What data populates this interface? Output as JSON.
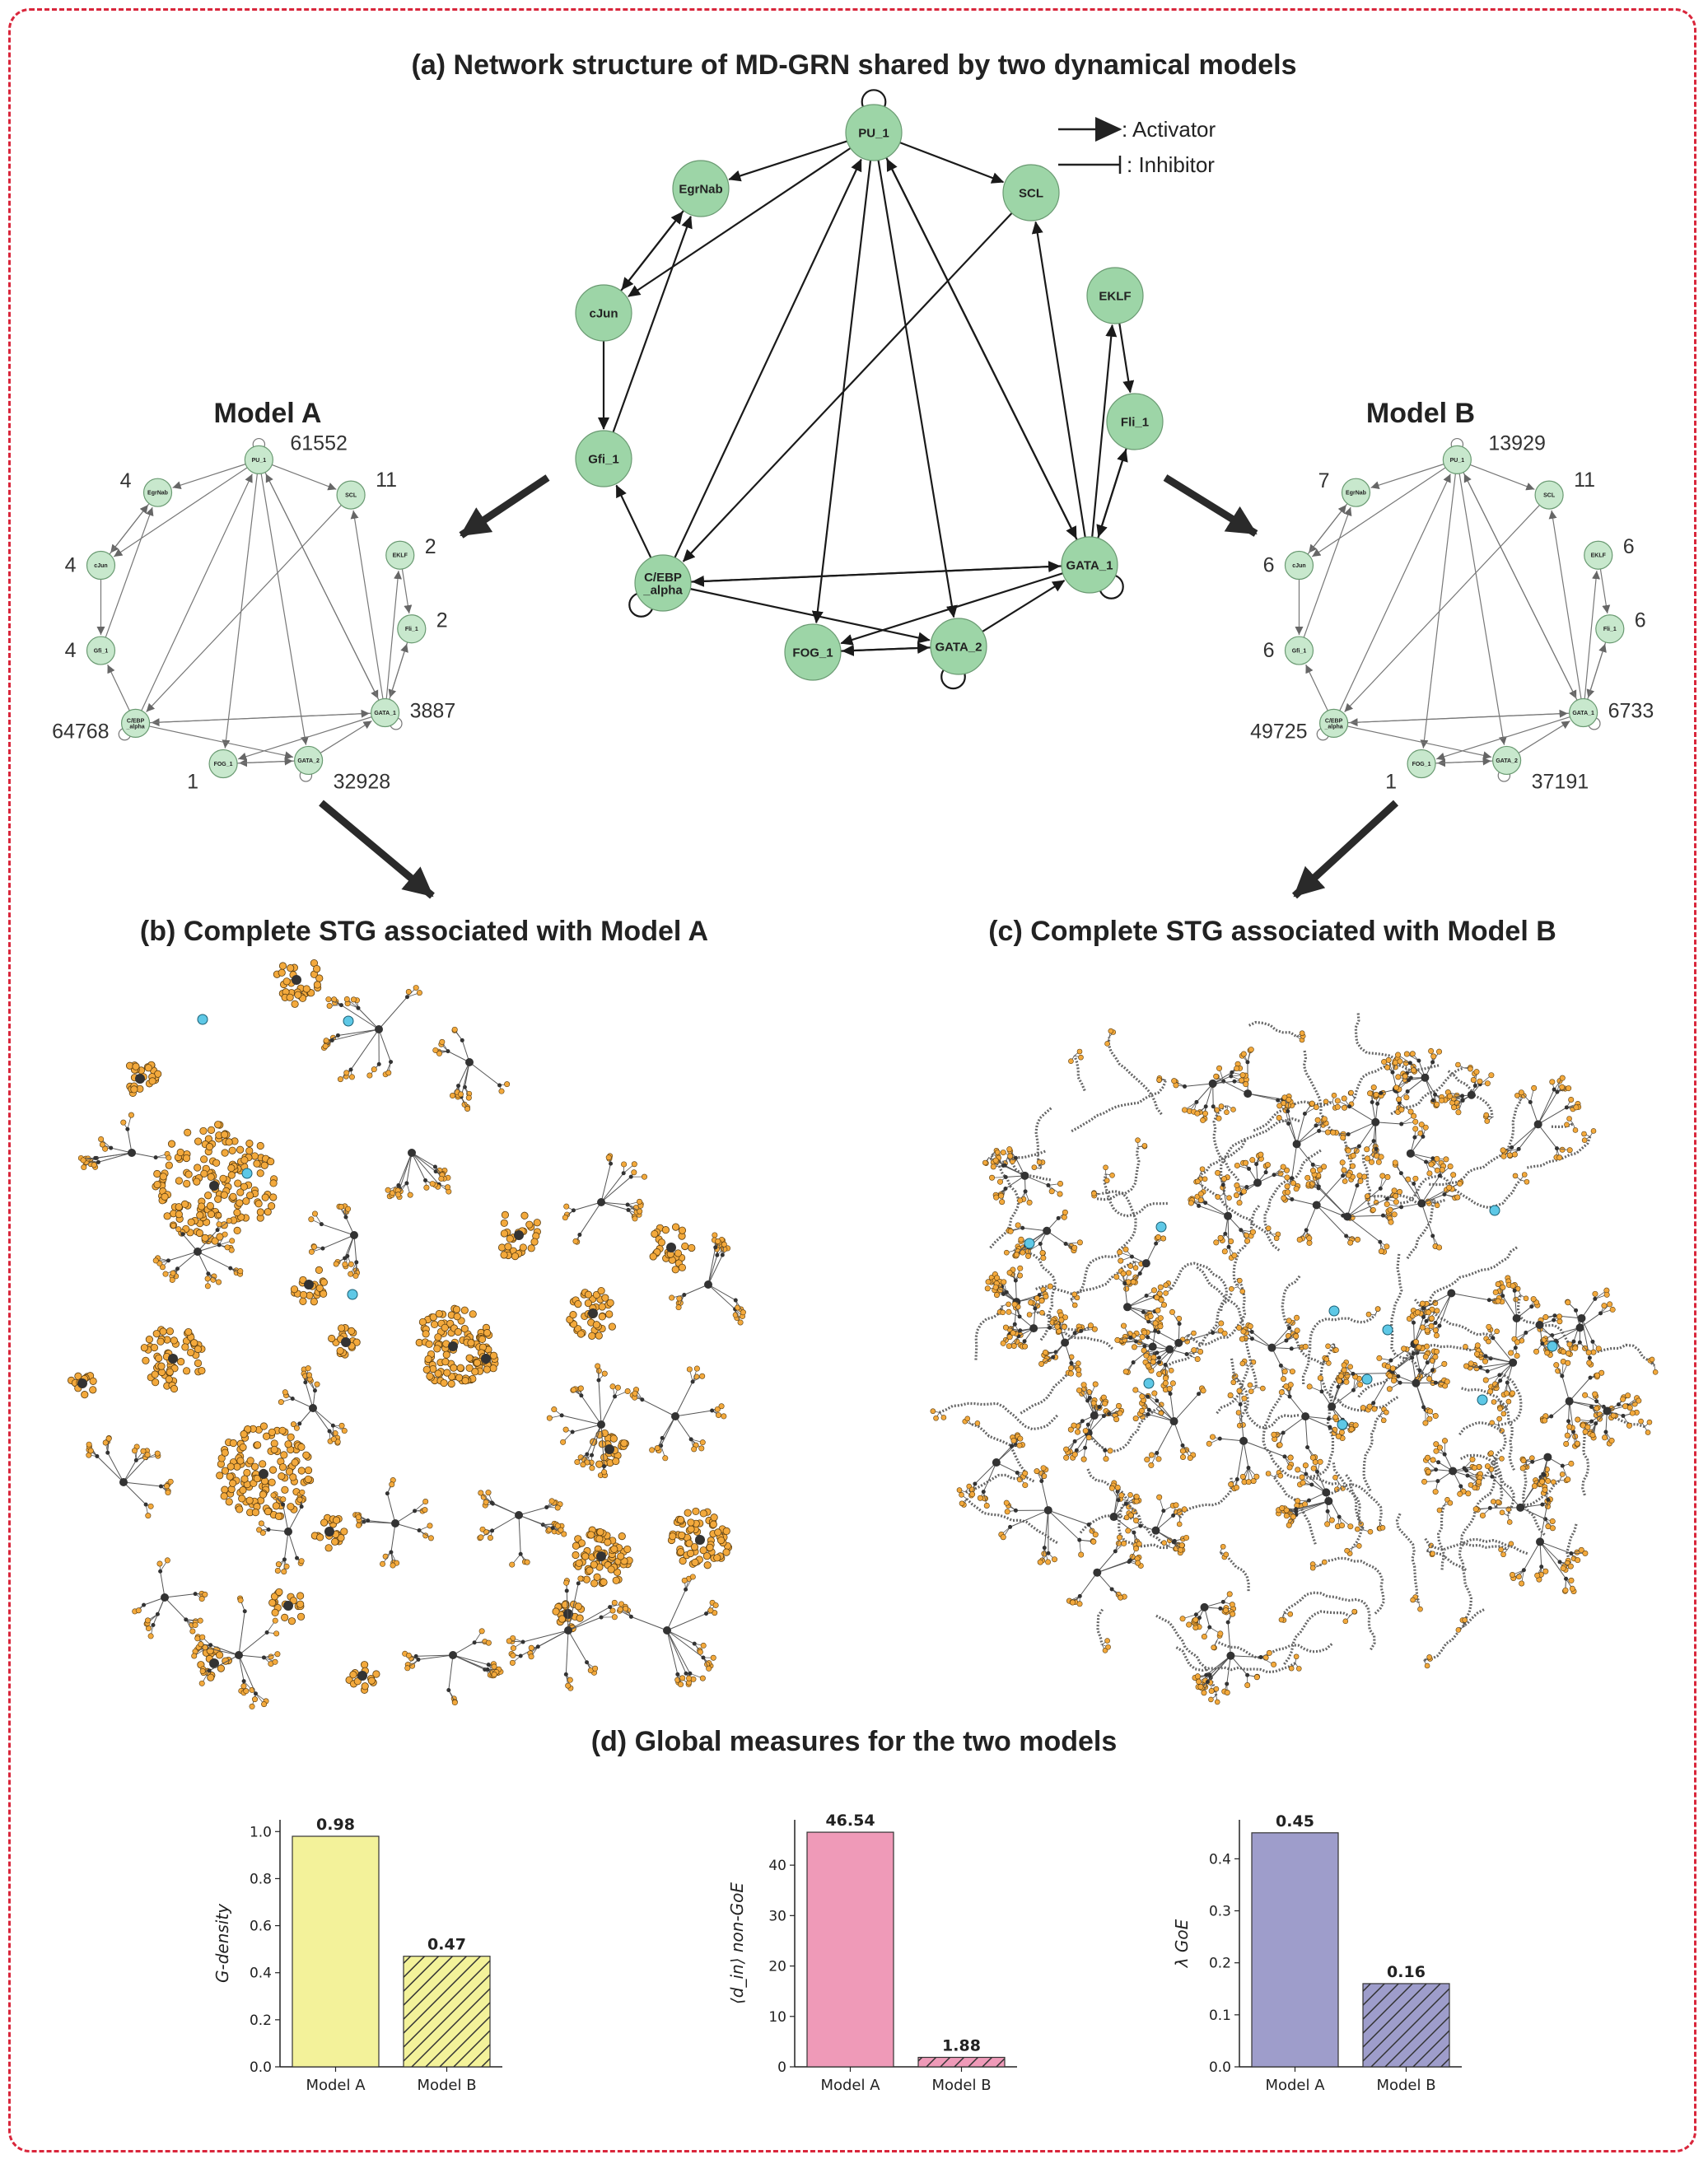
{
  "panels": {
    "a_title": "(a) Network structure of MD-GRN shared by two dynamical models",
    "b_title": "(b) Complete STG associated with Model A",
    "c_title": "(c) Complete STG associated with Model B",
    "d_title": "(d) Global measures for the two models"
  },
  "legend": {
    "activator": ": Activator",
    "inhibitor": ": Inhibitor"
  },
  "network": {
    "node_color": "#9dd5a7",
    "nodes": [
      {
        "id": "PU",
        "label": "PU_1"
      },
      {
        "id": "EGR",
        "label": "EgrNab"
      },
      {
        "id": "SCL",
        "label": "SCL"
      },
      {
        "id": "CJUN",
        "label": "cJun"
      },
      {
        "id": "EKLF",
        "label": "EKLF"
      },
      {
        "id": "GFI",
        "label": "Gfi_1"
      },
      {
        "id": "FLI",
        "label": "Fli_1"
      },
      {
        "id": "CEBP",
        "label": "C/EBP",
        "label2": "_alpha"
      },
      {
        "id": "GATA1",
        "label": "GATA_1"
      },
      {
        "id": "FOG",
        "label": "FOG_1"
      },
      {
        "id": "GATA2",
        "label": "GATA_2"
      }
    ]
  },
  "models": [
    {
      "title": "Model A",
      "counts": {
        "PU": "61552",
        "EGR": "4",
        "SCL": "11",
        "CJUN": "4",
        "EKLF": "2",
        "GFI": "4",
        "FLI": "2",
        "CEBP": "64768",
        "GATA1": "3887",
        "FOG": "1",
        "GATA2": "32928"
      }
    },
    {
      "title": "Model B",
      "counts": {
        "PU": "13929",
        "EGR": "7",
        "SCL": "11",
        "CJUN": "6",
        "EKLF": "6",
        "GFI": "6",
        "FLI": "6",
        "CEBP": "49725",
        "GATA1": "6733",
        "FOG": "1",
        "GATA2": "37191"
      }
    }
  ],
  "stg_colors": {
    "node": "#f3a93c",
    "hub": "#333333",
    "edge": "#555555",
    "attractor": "#5ec8e6"
  },
  "chart_data": [
    {
      "type": "bar",
      "categories": [
        "Model A",
        "Model B"
      ],
      "values": [
        0.98,
        0.47
      ],
      "value_labels": [
        "0.98",
        "0.47"
      ],
      "ylabel": "G-density",
      "ylim": [
        0,
        1.05
      ],
      "yticks": [
        0.0,
        0.2,
        0.4,
        0.6,
        0.8,
        1.0
      ],
      "ytick_labels": [
        "0.0",
        "0.2",
        "0.4",
        "0.6",
        "0.8",
        "1.0"
      ],
      "color": "#f3f29a",
      "hatch": [
        false,
        true
      ]
    },
    {
      "type": "bar",
      "categories": [
        "Model A",
        "Model B"
      ],
      "values": [
        46.54,
        1.88
      ],
      "value_labels": [
        "46.54",
        "1.88"
      ],
      "ylabel": "⟨d_in⟩ non-GoE",
      "ylim": [
        0,
        49
      ],
      "yticks": [
        0,
        10,
        20,
        30,
        40
      ],
      "ytick_labels": [
        "0",
        "10",
        "20",
        "30",
        "40"
      ],
      "color": "#ef9ab8",
      "hatch": [
        false,
        true
      ]
    },
    {
      "type": "bar",
      "categories": [
        "Model A",
        "Model B"
      ],
      "values": [
        0.45,
        0.16
      ],
      "value_labels": [
        "0.45",
        "0.16"
      ],
      "ylabel": "λ GoE",
      "ylim": [
        0,
        0.475
      ],
      "yticks": [
        0.0,
        0.1,
        0.2,
        0.3,
        0.4
      ],
      "ytick_labels": [
        "0.0",
        "0.1",
        "0.2",
        "0.3",
        "0.4"
      ],
      "color": "#9e9dcb",
      "hatch": [
        false,
        true
      ]
    }
  ]
}
